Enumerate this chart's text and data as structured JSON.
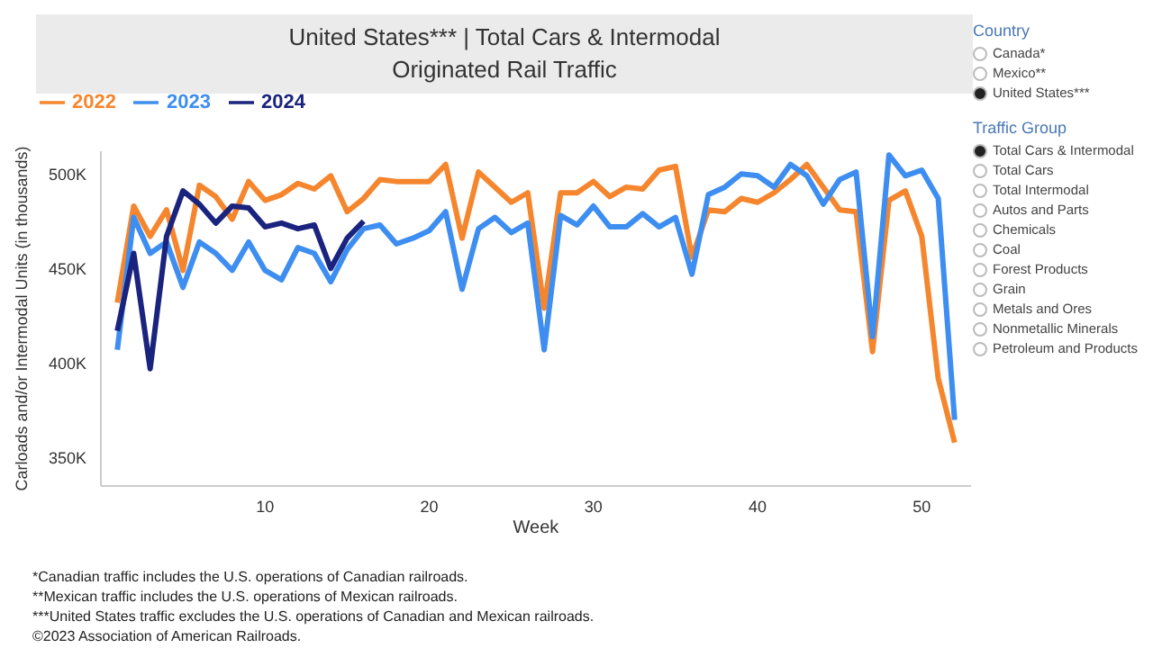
{
  "chart_data": {
    "type": "line",
    "title": "United States*** | Total Cars & Intermodal",
    "subtitle": "Originated Rail Traffic",
    "xlabel": "Week",
    "ylabel": "Carloads and/or Intermodal Units (in thousands)",
    "x": [
      1,
      2,
      3,
      4,
      5,
      6,
      7,
      8,
      9,
      10,
      11,
      12,
      13,
      14,
      15,
      16,
      17,
      18,
      19,
      20,
      21,
      22,
      23,
      24,
      25,
      26,
      27,
      28,
      29,
      30,
      31,
      32,
      33,
      34,
      35,
      36,
      37,
      38,
      39,
      40,
      41,
      42,
      43,
      44,
      45,
      46,
      47,
      48,
      49,
      50,
      51,
      52
    ],
    "series": [
      {
        "name": "2022",
        "color": "#f5862e",
        "values": [
          432000,
          483000,
          467000,
          481000,
          449000,
          494000,
          488000,
          476000,
          496000,
          486000,
          489000,
          495000,
          492000,
          499000,
          480000,
          487000,
          497000,
          496000,
          496000,
          496000,
          505000,
          466000,
          501000,
          493000,
          485000,
          490000,
          429000,
          490000,
          490000,
          496000,
          488000,
          493000,
          492000,
          502000,
          504000,
          456000,
          481000,
          480000,
          487000,
          485000,
          490000,
          497000,
          505000,
          493000,
          481000,
          480000,
          406000,
          486000,
          491000,
          467000,
          392000,
          358000
        ]
      },
      {
        "name": "2023",
        "color": "#3d8ef0",
        "values": [
          407000,
          477000,
          458000,
          464000,
          440000,
          464000,
          458000,
          449000,
          464000,
          449000,
          444000,
          461000,
          458000,
          443000,
          460000,
          471000,
          473000,
          463000,
          466000,
          470000,
          480000,
          439000,
          471000,
          477000,
          469000,
          474000,
          407000,
          478000,
          473000,
          483000,
          472000,
          472000,
          479000,
          472000,
          477000,
          447000,
          489000,
          493000,
          500000,
          499000,
          493000,
          505000,
          499000,
          484000,
          497000,
          501000,
          414000,
          510000,
          499000,
          502000,
          487000,
          370000
        ]
      },
      {
        "name": "2024",
        "color": "#1a237e",
        "values": [
          417000,
          458000,
          397000,
          467000,
          491000,
          484000,
          474000,
          483000,
          482000,
          472000,
          474000,
          471000,
          473000,
          450000,
          466000,
          475000,
          null,
          null,
          null,
          null,
          null,
          null,
          null,
          null,
          null,
          null,
          null,
          null,
          null,
          null,
          null,
          null,
          null,
          null,
          null,
          null,
          null,
          null,
          null,
          null,
          null,
          null,
          null,
          null,
          null,
          null,
          null,
          null,
          null,
          null,
          null,
          null
        ]
      }
    ],
    "xlim": [
      0,
      53
    ],
    "xticks": [
      10,
      20,
      30,
      40,
      50
    ],
    "ylim": [
      335000,
      512000
    ],
    "yticks": [
      {
        "value": 350000,
        "label": "350K"
      },
      {
        "value": 400000,
        "label": "400K"
      },
      {
        "value": 450000,
        "label": "450K"
      },
      {
        "value": 500000,
        "label": "500K"
      }
    ],
    "grid": false,
    "legend": "top left",
    "marker": "none",
    "line_style": "solid",
    "annotations": [
      "Country",
      "Canada*",
      "Mexico**",
      "United States***",
      "Traffic Group",
      "Total Cars & Intermodal",
      "Total Cars",
      "Total Intermodal",
      "Autos and Parts",
      "Chemicals",
      "Coal",
      "Forest Products",
      "Grain",
      "Metals and Ores",
      "Nonmetallic Minerals",
      "Petroleum and Products",
      "*Canadian traffic includes the U.S. operations of Canadian railroads.",
      "**Mexican traffic includes the U.S. operations of Mexican railroads.",
      "***United States traffic excludes the U.S. operations of Canadian and Mexican railroads.",
      "©2023 Association of American Railroads."
    ]
  }
}
